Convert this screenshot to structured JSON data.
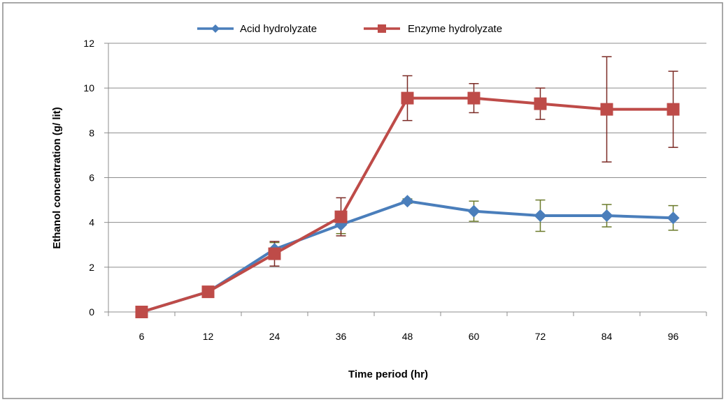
{
  "chart_data": {
    "type": "line",
    "title": "",
    "xlabel": "Time period (hr)",
    "ylabel": "Ethanol concentration (g/ lit)",
    "categories": [
      "6",
      "12",
      "24",
      "36",
      "48",
      "60",
      "72",
      "84",
      "96"
    ],
    "ylim": [
      0,
      12
    ],
    "yticks": [
      0,
      2,
      4,
      6,
      8,
      10,
      12
    ],
    "grid": true,
    "legend_position": "top",
    "series": [
      {
        "name": "Acid hydrolyzate",
        "color": "#4a7ebb",
        "error_color": "#6b7a2a",
        "marker": "diamond",
        "values": [
          0,
          0.9,
          2.8,
          3.9,
          4.95,
          4.5,
          4.3,
          4.3,
          4.2
        ],
        "errors": [
          0,
          0.15,
          0.3,
          0.4,
          0.1,
          0.45,
          0.7,
          0.5,
          0.55
        ]
      },
      {
        "name": "Enzyme hydrolyzate",
        "color": "#be4b48",
        "error_color": "#7b2a25",
        "marker": "square",
        "values": [
          0,
          0.9,
          2.6,
          4.25,
          9.55,
          9.55,
          9.3,
          9.05,
          9.05
        ],
        "errors": [
          0,
          0.1,
          0.55,
          0.85,
          1.0,
          0.65,
          0.7,
          2.35,
          1.7
        ]
      }
    ]
  }
}
